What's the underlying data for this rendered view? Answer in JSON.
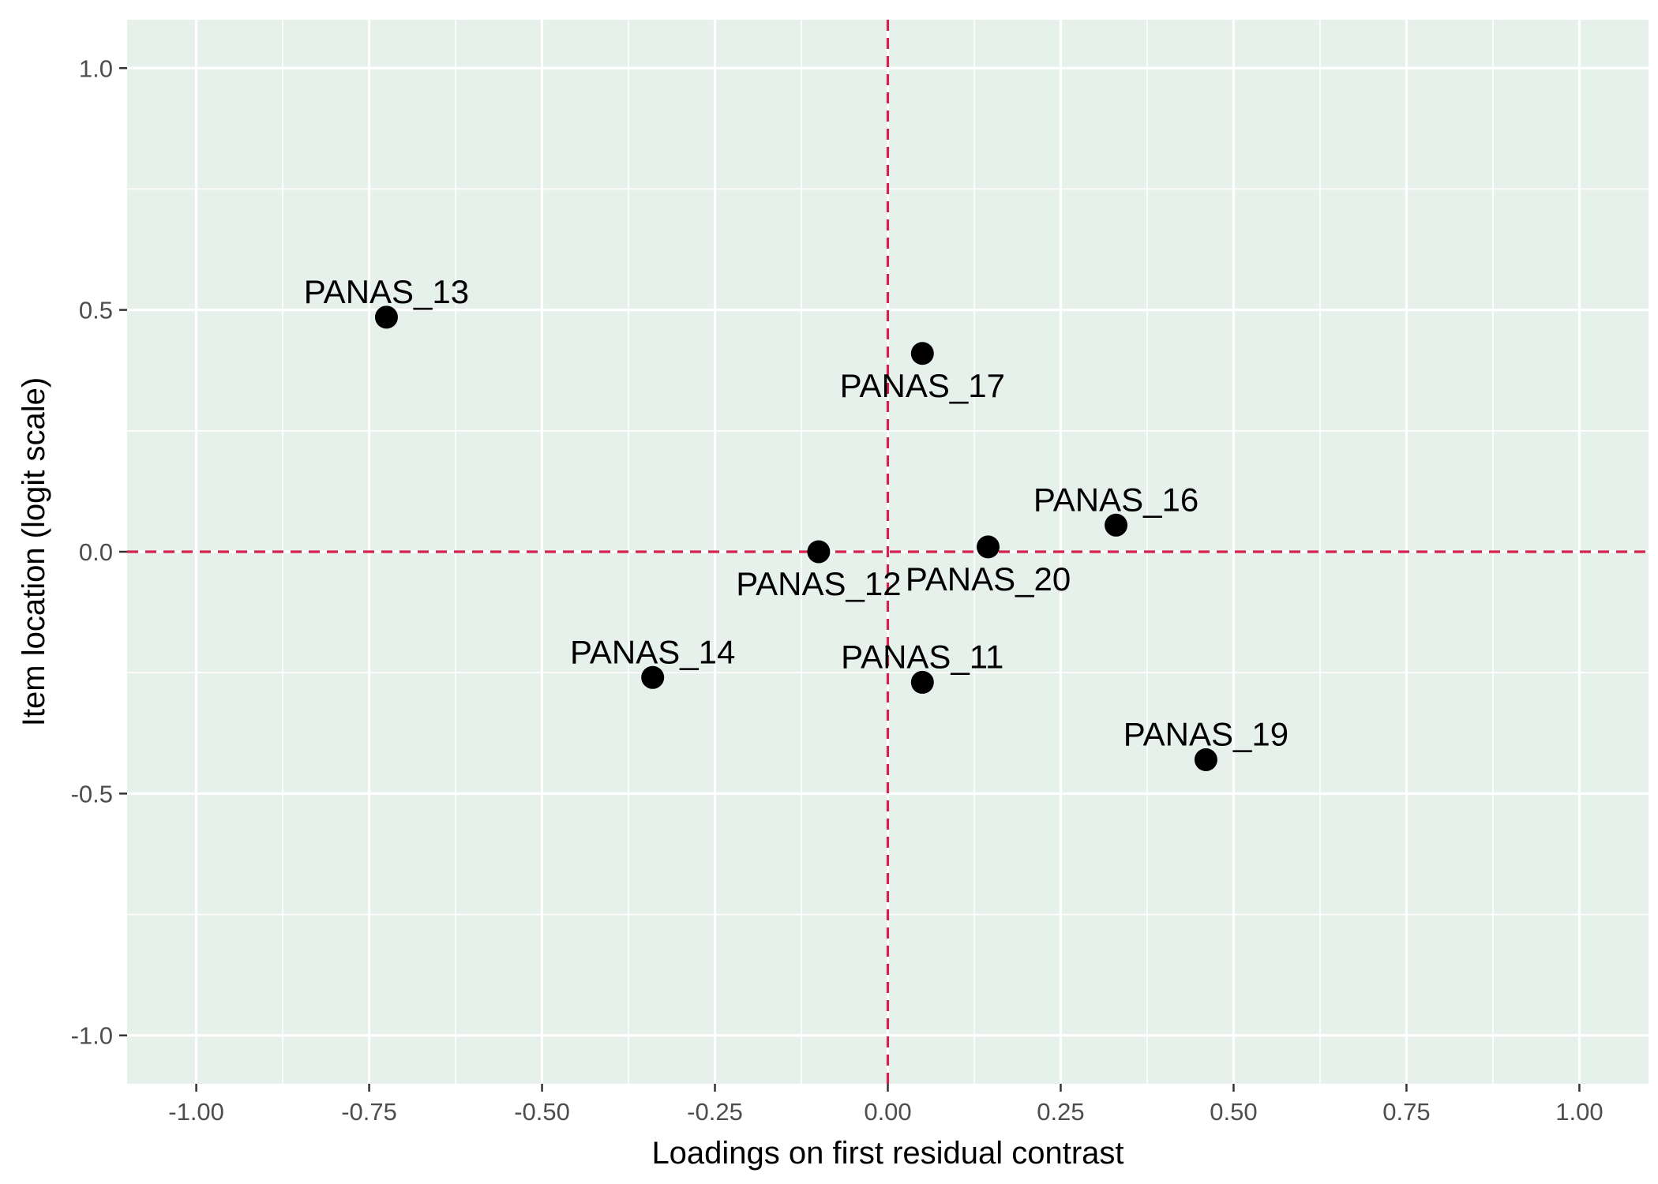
{
  "chart_data": {
    "type": "scatter",
    "title": "",
    "xlabel": "Loadings on first residual contrast",
    "ylabel": "Item location (logit scale)",
    "xlim": [
      -1.1,
      1.1
    ],
    "ylim": [
      -1.1,
      1.1
    ],
    "x_ticks": [
      -1.0,
      -0.75,
      -0.5,
      -0.25,
      0.0,
      0.25,
      0.5,
      0.75,
      1.0
    ],
    "x_tick_labels": [
      "-1.00",
      "-0.75",
      "-0.50",
      "-0.25",
      "0.00",
      "0.25",
      "0.50",
      "0.75",
      "1.00"
    ],
    "y_ticks": [
      -1.0,
      -0.5,
      0.0,
      0.5,
      1.0
    ],
    "y_tick_labels": [
      "-1.0",
      "-0.5",
      "0.0",
      "0.5",
      "1.0"
    ],
    "grid": true,
    "reference_lines": {
      "x": 0.0,
      "y": 0.0,
      "color": "#d6204e",
      "style": "dashed"
    },
    "colors": {
      "panel_background": "#e5f1ea",
      "grid": "#ffffff",
      "point": "#000000"
    },
    "points": [
      {
        "label": "PANAS_13",
        "x": -0.725,
        "y": 0.485,
        "label_pos": "above"
      },
      {
        "label": "PANAS_17",
        "x": 0.05,
        "y": 0.41,
        "label_pos": "below"
      },
      {
        "label": "PANAS_16",
        "x": 0.33,
        "y": 0.055,
        "label_pos": "above"
      },
      {
        "label": "PANAS_12",
        "x": -0.1,
        "y": 0.0,
        "label_pos": "below"
      },
      {
        "label": "PANAS_20",
        "x": 0.145,
        "y": 0.01,
        "label_pos": "below"
      },
      {
        "label": "PANAS_14",
        "x": -0.34,
        "y": -0.26,
        "label_pos": "above"
      },
      {
        "label": "PANAS_11",
        "x": 0.05,
        "y": -0.27,
        "label_pos": "above"
      },
      {
        "label": "PANAS_19",
        "x": 0.46,
        "y": -0.43,
        "label_pos": "above"
      }
    ]
  }
}
